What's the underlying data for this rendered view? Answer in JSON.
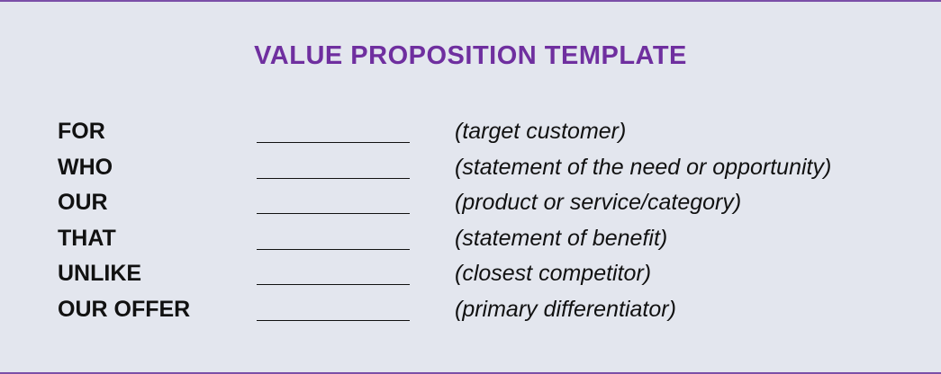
{
  "title": "VALUE PROPOSITION TEMPLATE",
  "rows": [
    {
      "label": "FOR",
      "hint": "(target customer)"
    },
    {
      "label": "WHO",
      "hint": "(statement of the need or opportunity)"
    },
    {
      "label": "OUR",
      "hint": "(product or service/category)"
    },
    {
      "label": "THAT",
      "hint": "(statement of benefit)"
    },
    {
      "label": "UNLIKE",
      "hint": "(closest competitor)"
    },
    {
      "label": "OUR OFFER",
      "hint": "(primary differentiator)"
    }
  ],
  "colors": {
    "title": "#6f2f9f",
    "background": "#e3e6ee",
    "border": "#7b4fa8",
    "text": "#111111"
  }
}
